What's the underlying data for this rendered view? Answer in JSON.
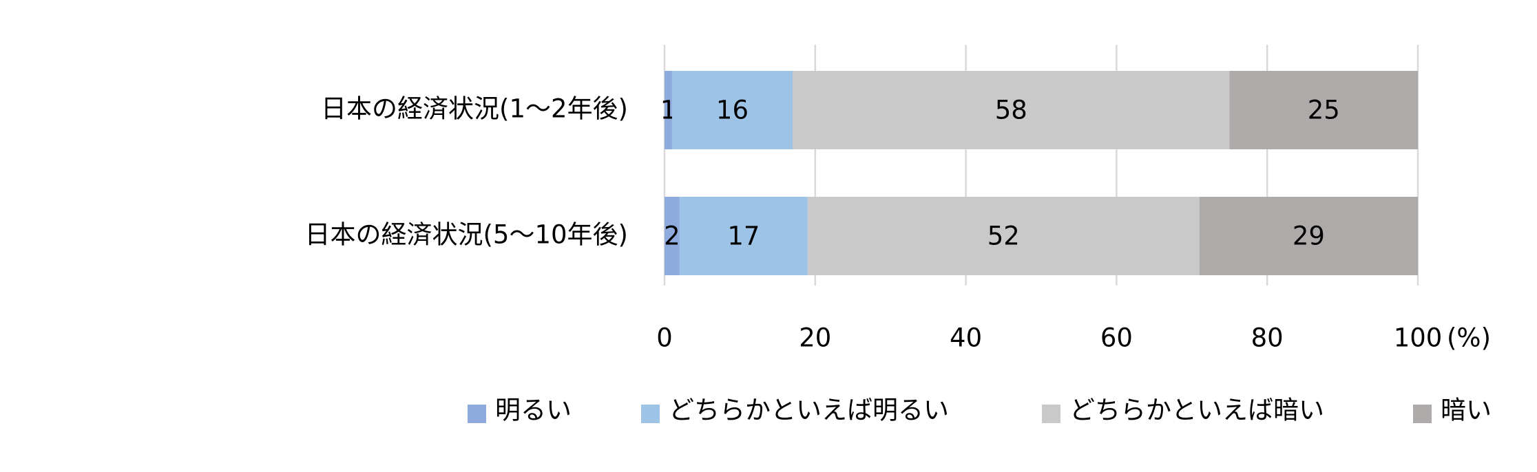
{
  "chart_data": {
    "type": "bar",
    "orientation": "horizontal",
    "stacked": true,
    "categories": [
      "日本の経済状況(1～2年後)",
      "日本の経済状況(5～10年後)"
    ],
    "series": [
      {
        "name": "明るい",
        "color": "#8faadc",
        "values": [
          1,
          2
        ]
      },
      {
        "name": "どちらかといえば明るい",
        "color": "#9dc3e6",
        "values": [
          16,
          17
        ]
      },
      {
        "name": "どちらかといえば暗い",
        "color": "#c9c9c9",
        "values": [
          58,
          52
        ]
      },
      {
        "name": "暗い",
        "color": "#aeaaaa",
        "values": [
          25,
          29
        ]
      }
    ],
    "xlim": [
      0,
      100
    ],
    "xticks": [
      0,
      20,
      40,
      60,
      80,
      100
    ],
    "xlabel": "(%)",
    "grid": true,
    "legend": "bottom"
  }
}
